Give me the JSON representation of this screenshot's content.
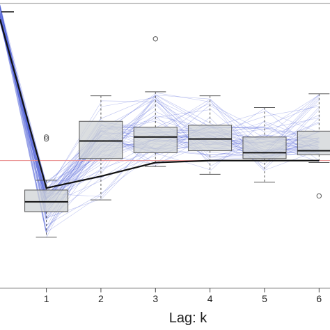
{
  "chart_data": {
    "type": "boxplot",
    "title": "",
    "xlabel": "Lag: k",
    "ylabel": "",
    "categories": [
      "1",
      "2",
      "3",
      "4",
      "5",
      "6"
    ],
    "x_range": [
      0.15,
      6.2
    ],
    "y_range": [
      -0.65,
      0.8
    ],
    "legend": "top-left",
    "grid": false,
    "reference_line": {
      "y": 0.0,
      "color": "#e88a8a"
    },
    "mean_line": {
      "x": [
        0.15,
        1,
        2,
        3,
        4,
        5,
        6
      ],
      "y": [
        0.72,
        -0.14,
        -0.08,
        -0.01,
        0.0,
        0.0,
        0.0
      ],
      "color": "#111111"
    },
    "boxes": [
      {
        "x": 1,
        "whisker_low": -0.39,
        "q1": -0.26,
        "median": -0.21,
        "q3": -0.15,
        "whisker_high": -0.1,
        "outliers": [
          0.11,
          0.12
        ]
      },
      {
        "x": 2,
        "whisker_low": -0.2,
        "q1": 0.01,
        "median": 0.1,
        "q3": 0.2,
        "whisker_high": 0.33,
        "outliers": []
      },
      {
        "x": 3,
        "whisker_low": -0.03,
        "q1": 0.04,
        "median": 0.12,
        "q3": 0.17,
        "whisker_high": 0.35,
        "outliers": [
          0.62
        ]
      },
      {
        "x": 4,
        "whisker_low": -0.07,
        "q1": 0.05,
        "median": 0.11,
        "q3": 0.18,
        "whisker_high": 0.33,
        "outliers": []
      },
      {
        "x": 5,
        "whisker_low": -0.11,
        "q1": 0.01,
        "median": 0.04,
        "q3": 0.12,
        "whisker_high": 0.27,
        "outliers": []
      },
      {
        "x": 6,
        "whisker_low": -0.01,
        "q1": 0.03,
        "median": 0.05,
        "q3": 0.15,
        "whisker_high": 0.34,
        "outliers": [
          -0.18
        ]
      }
    ],
    "trajectories": {
      "count": 60,
      "color": "#4a5bd6"
    },
    "colors": {
      "box_fill": "#cfd3d6",
      "box_stroke": "#555555",
      "whisker": "#555555",
      "frame": "#888888"
    }
  }
}
